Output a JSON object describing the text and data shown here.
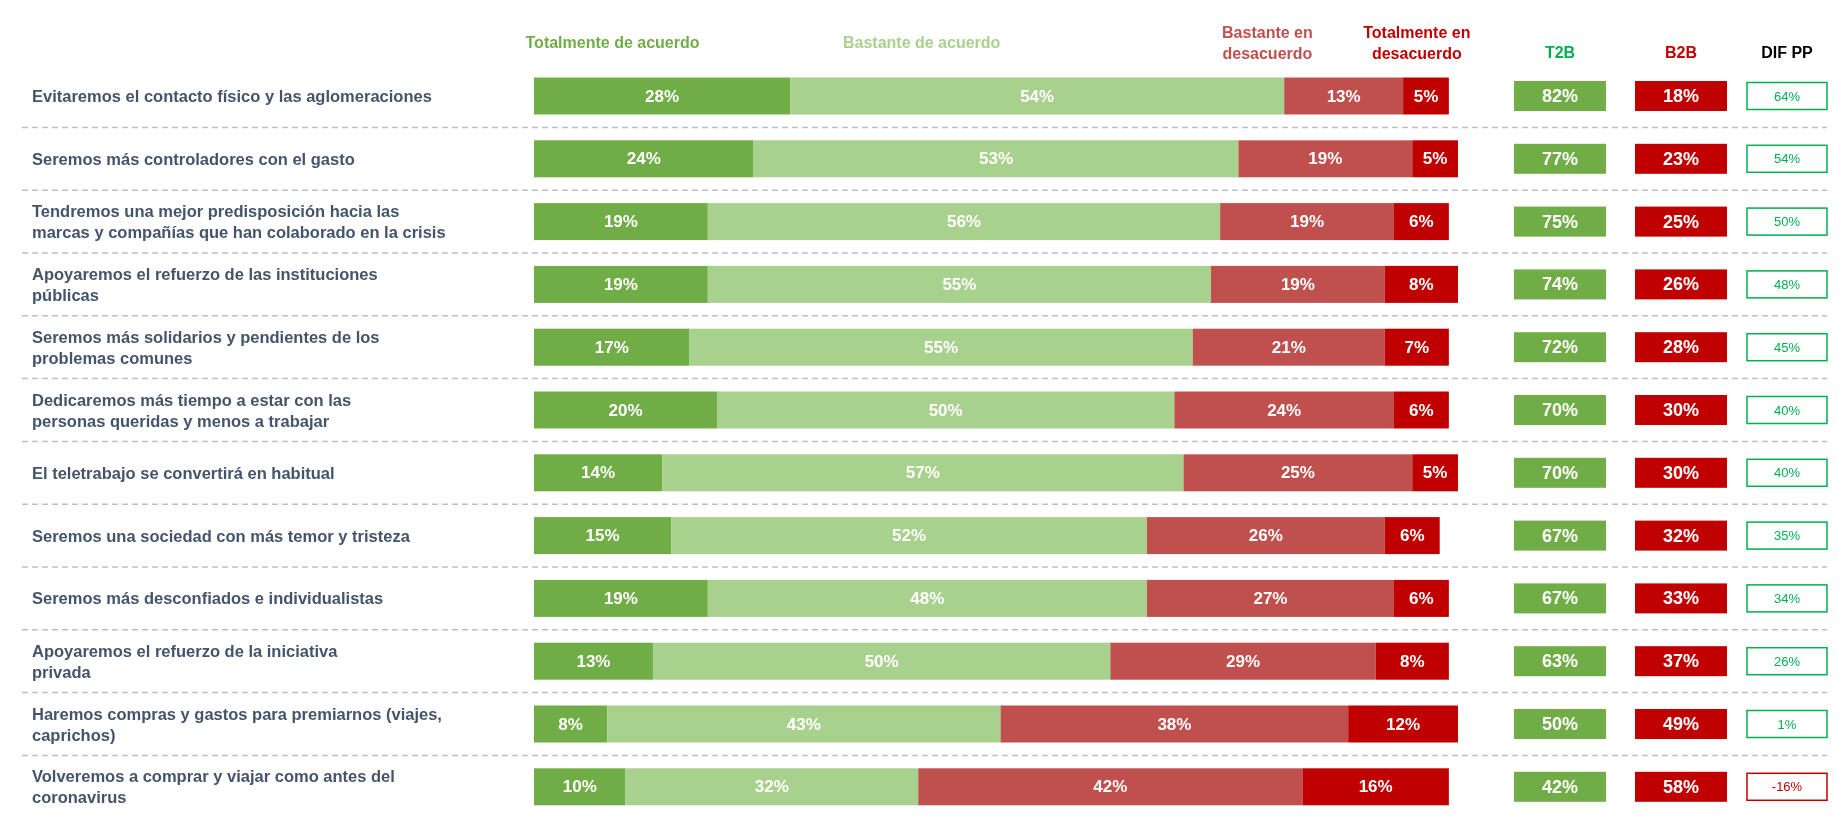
{
  "chart_data": [
    {
      "type": "bar",
      "orientation": "horizontal",
      "stacked": true,
      "legend": "top",
      "categories": [
        "Evitaremos el contacto físico y las aglomeraciones",
        "Seremos más controladores con el gasto",
        "Tendremos una mejor predisposición hacia las\nmarcas y compañías que han colaborado en la crisis",
        "Apoyaremos el refuerzo de las instituciones\npúblicas",
        "Seremos más solidarios y pendientes de los\nproblemas comunes",
        "Dedicaremos más tiempo a estar con las\npersonas queridas y menos a trabajar",
        "El teletrabajo se convertirá en habitual",
        "Seremos una sociedad con más temor y tristeza",
        "Seremos más desconfiados e individualistas",
        "Apoyaremos el refuerzo de la iniciativa\nprivada",
        "Haremos compras y gastos para premiarnos (viajes,\ncaprichos)",
        "Volveremos a comprar y viajar como antes del\ncoronavirus"
      ],
      "series": [
        {
          "name": "Totalmente de acuerdo",
          "color": "#70ad47",
          "values": [
            28,
            24,
            19,
            19,
            17,
            20,
            14,
            15,
            19,
            13,
            8,
            10
          ],
          "value_labels": [
            "28%",
            "24%",
            "19%",
            "19%",
            "17%",
            "20%",
            "14%",
            "15%",
            "19%",
            "13%",
            "8%",
            "10%"
          ]
        },
        {
          "name": "Bastante de acuerdo",
          "color": "#a9d18e",
          "values": [
            54,
            53,
            56,
            55,
            55,
            50,
            57,
            52,
            48,
            50,
            43,
            32
          ],
          "value_labels": [
            "54%",
            "53%",
            "56%",
            "55%",
            "55%",
            "50%",
            "57%",
            "52%",
            "48%",
            "50%",
            "43%",
            "32%"
          ]
        },
        {
          "name": "Bastante en\ndesacuerdo",
          "color": "#c0504d",
          "values": [
            13,
            19,
            19,
            19,
            21,
            24,
            25,
            26,
            27,
            29,
            38,
            42
          ],
          "value_labels": [
            "13%",
            "19%",
            "19%",
            "19%",
            "21%",
            "24%",
            "25%",
            "26%",
            "27%",
            "29%",
            "38%",
            "42%"
          ]
        },
        {
          "name": "Totalmente en\ndesacuerdo",
          "color": "#c00000",
          "values": [
            5,
            5,
            6,
            8,
            7,
            6,
            5,
            6,
            6,
            8,
            12,
            16
          ],
          "value_labels": [
            "5%",
            "5%",
            "6%",
            "8%",
            "7%",
            "6%",
            "5%",
            "6%",
            "6%",
            "8%",
            "12%",
            "16%"
          ]
        }
      ]
    },
    {
      "type": "other",
      "title": "T2B",
      "value_labels": [
        "82%",
        "77%",
        "75%",
        "74%",
        "72%",
        "70%",
        "70%",
        "67%",
        "67%",
        "63%",
        "50%",
        "42%"
      ],
      "colors": [
        "#70ad47",
        "#70ad47",
        "#70ad47",
        "#70ad47",
        "#70ad47",
        "#70ad47",
        "#70ad47",
        "#70ad47",
        "#70ad47",
        "#70ad47",
        "#70ad47",
        "#70ad47"
      ]
    },
    {
      "type": "other",
      "title": "B2B",
      "value_labels": [
        "18%",
        "23%",
        "25%",
        "26%",
        "28%",
        "30%",
        "30%",
        "32%",
        "33%",
        "37%",
        "49%",
        "58%"
      ],
      "colors": [
        "#c00000",
        "#c00000",
        "#c00000",
        "#c00000",
        "#c00000",
        "#c00000",
        "#c00000",
        "#c00000",
        "#c00000",
        "#c00000",
        "#c00000",
        "#c00000"
      ]
    },
    {
      "type": "other",
      "title": "DIF PP",
      "value_labels": [
        "64%",
        "54%",
        "50%",
        "48%",
        "45%",
        "40%",
        "40%",
        "35%",
        "34%",
        "26%",
        "1%",
        "-16%"
      ],
      "colors": [
        "#00b050",
        "#00b050",
        "#00b050",
        "#00b050",
        "#00b050",
        "#00b050",
        "#00b050",
        "#00b050",
        "#00b050",
        "#00b050",
        "#00b050",
        "#c00000"
      ]
    }
  ]
}
